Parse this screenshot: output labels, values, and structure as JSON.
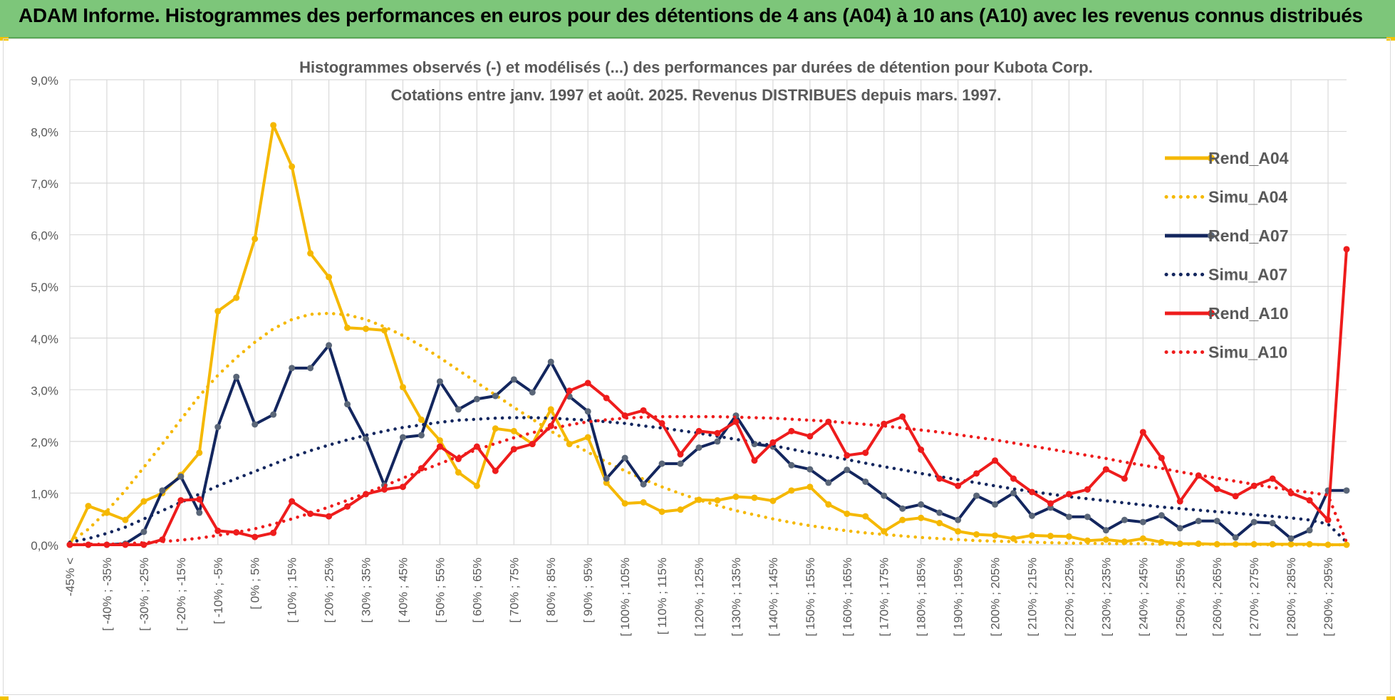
{
  "banner": {
    "title": "ADAM Informe. Histogrammes des performances en euros pour des détentions de 4 ans (A04) à 10 ans (A10) avec les revenus connus distribués"
  },
  "colors": {
    "A04": "#f5b800",
    "A07": "#13265e",
    "A10": "#ee1c1c",
    "banner": "#7dc67a",
    "grid": "#d9d9d9"
  },
  "chart_data": {
    "type": "line",
    "title": "Histogrammes observés (-) et modélisés (...) des performances par durées de détention pour Kubota Corp.",
    "subtitle": "Cotations entre janv. 1997 et août. 2025. Revenus DISTRIBUES depuis mars. 1997.",
    "xlabel": "",
    "ylabel": "",
    "ylim": [
      0,
      9
    ],
    "yticks": [
      "0,0%",
      "1,0%",
      "2,0%",
      "3,0%",
      "4,0%",
      "5,0%",
      "6,0%",
      "7,0%",
      "8,0%",
      "9,0%"
    ],
    "grid": true,
    "legend_position": "top-right",
    "x_tick_labels": [
      "-45% <",
      "[ -40% ; -35%",
      "[ -30% ; -25%",
      "[ -20% ; -15%",
      "[ -10% ; -5%",
      "[ 0% ; 5%",
      "[ 10% ; 15%",
      "[ 20% ; 25%",
      "[ 30% ; 35%",
      "[ 40% ; 45%",
      "[ 50% ; 55%",
      "[ 60% ; 65%",
      "[ 70% ; 75%",
      "[ 80% ; 85%",
      "[ 90% ; 95%",
      "[ 100% ; 105%",
      "[ 110% ; 115%",
      "[ 120% ; 125%",
      "[ 130% ; 135%",
      "[ 140% ; 145%",
      "[ 150% ; 155%",
      "[ 160% ; 165%",
      "[ 170% ; 175%",
      "[ 180% ; 185%",
      "[ 190% ; 195%",
      "[ 200% ; 205%",
      "[ 210% ; 215%",
      "[ 220% ; 225%",
      "[ 230% ; 235%",
      "[ 240% ; 245%",
      "[ 250% ; 255%",
      "[ 260% ; 265%",
      "[ 270% ; 275%",
      "[ 280% ; 285%",
      "[ 290% ; 295%"
    ],
    "n_categories": 70,
    "series": [
      {
        "name": "Rend_A04",
        "style": "solid",
        "color": "#f5b800",
        "values": [
          0.0,
          0.75,
          0.62,
          0.48,
          0.84,
          1.0,
          1.35,
          1.78,
          4.52,
          4.78,
          5.92,
          8.12,
          7.32,
          5.64,
          5.18,
          4.2,
          4.18,
          4.15,
          3.05,
          2.42,
          2.02,
          1.4,
          1.14,
          2.25,
          2.2,
          1.95,
          2.62,
          1.95,
          2.08,
          1.2,
          0.8,
          0.82,
          0.64,
          0.68,
          0.87,
          0.86,
          0.93,
          0.91,
          0.85,
          1.05,
          1.12,
          0.78,
          0.6,
          0.55,
          0.26,
          0.48,
          0.52,
          0.42,
          0.26,
          0.2,
          0.18,
          0.12,
          0.18,
          0.17,
          0.16,
          0.08,
          0.1,
          0.06,
          0.12,
          0.05,
          0.02,
          0.02,
          0.01,
          0.01,
          0.01,
          0.01,
          0.01,
          0.01,
          0.0,
          0.0
        ]
      },
      {
        "name": "Simu_A04",
        "style": "dotted",
        "color": "#f5b800",
        "values": [
          0.05,
          0.3,
          0.65,
          1.05,
          1.5,
          1.95,
          2.42,
          2.88,
          3.28,
          3.62,
          3.92,
          4.18,
          4.36,
          4.46,
          4.48,
          4.45,
          4.36,
          4.22,
          4.05,
          3.85,
          3.62,
          3.38,
          3.14,
          2.9,
          2.66,
          2.43,
          2.2,
          1.99,
          1.79,
          1.6,
          1.43,
          1.27,
          1.12,
          0.99,
          0.87,
          0.76,
          0.66,
          0.58,
          0.5,
          0.43,
          0.37,
          0.32,
          0.27,
          0.23,
          0.2,
          0.17,
          0.14,
          0.12,
          0.1,
          0.08,
          0.07,
          0.06,
          0.05,
          0.04,
          0.03,
          0.03,
          0.02,
          0.02,
          0.02,
          0.01,
          0.01,
          0.01,
          0.01,
          0.01,
          0.01,
          0.0,
          0.0,
          0.0,
          0.0,
          0.0
        ]
      },
      {
        "name": "Rend_A07",
        "style": "solid",
        "color": "#13265e",
        "values": [
          0.0,
          0.0,
          0.0,
          0.02,
          0.25,
          1.05,
          1.32,
          0.62,
          2.28,
          3.25,
          2.33,
          2.52,
          3.42,
          3.42,
          3.86,
          2.72,
          2.05,
          1.15,
          2.08,
          2.12,
          3.16,
          2.62,
          2.82,
          2.88,
          3.2,
          2.95,
          3.54,
          2.87,
          2.58,
          1.28,
          1.68,
          1.17,
          1.57,
          1.57,
          1.88,
          2.0,
          2.5,
          1.95,
          1.9,
          1.54,
          1.46,
          1.2,
          1.45,
          1.22,
          0.95,
          0.7,
          0.78,
          0.62,
          0.48,
          0.95,
          0.78,
          1.0,
          0.56,
          0.72,
          0.54,
          0.54,
          0.28,
          0.48,
          0.44,
          0.57,
          0.32,
          0.46,
          0.46,
          0.14,
          0.44,
          0.42,
          0.12,
          0.28,
          1.05,
          1.05
        ]
      },
      {
        "name": "Simu_A07",
        "style": "dotted",
        "color": "#13265e",
        "values": [
          0.05,
          0.12,
          0.22,
          0.34,
          0.5,
          0.66,
          0.82,
          0.98,
          1.14,
          1.28,
          1.42,
          1.56,
          1.7,
          1.82,
          1.93,
          2.03,
          2.12,
          2.2,
          2.27,
          2.32,
          2.37,
          2.41,
          2.43,
          2.45,
          2.46,
          2.46,
          2.45,
          2.43,
          2.41,
          2.38,
          2.35,
          2.3,
          2.26,
          2.21,
          2.16,
          2.1,
          2.04,
          1.98,
          1.92,
          1.85,
          1.78,
          1.72,
          1.65,
          1.58,
          1.51,
          1.45,
          1.38,
          1.32,
          1.26,
          1.2,
          1.14,
          1.08,
          1.03,
          0.98,
          0.93,
          0.89,
          0.85,
          0.81,
          0.77,
          0.73,
          0.7,
          0.67,
          0.64,
          0.61,
          0.58,
          0.55,
          0.52,
          0.48,
          0.4,
          0.05
        ]
      },
      {
        "name": "Rend_A10",
        "style": "solid",
        "color": "#ee1c1c",
        "values": [
          0.0,
          0.0,
          0.0,
          0.0,
          0.0,
          0.1,
          0.86,
          0.88,
          0.27,
          0.24,
          0.15,
          0.23,
          0.84,
          0.6,
          0.55,
          0.74,
          0.98,
          1.07,
          1.12,
          1.48,
          1.9,
          1.66,
          1.9,
          1.43,
          1.85,
          1.95,
          2.3,
          2.98,
          3.13,
          2.84,
          2.5,
          2.6,
          2.35,
          1.75,
          2.2,
          2.16,
          2.38,
          1.63,
          1.98,
          2.2,
          2.1,
          2.38,
          1.73,
          1.78,
          2.34,
          2.48,
          1.84,
          1.28,
          1.14,
          1.38,
          1.63,
          1.28,
          1.02,
          0.8,
          0.98,
          1.07,
          1.46,
          1.28,
          2.18,
          1.68,
          0.84,
          1.34,
          1.08,
          0.94,
          1.14,
          1.28,
          1.0,
          0.86,
          0.48,
          5.72
        ]
      },
      {
        "name": "Simu_A10",
        "style": "dotted",
        "color": "#ee1c1c",
        "values": [
          0.0,
          0.01,
          0.01,
          0.02,
          0.04,
          0.06,
          0.09,
          0.13,
          0.18,
          0.24,
          0.31,
          0.4,
          0.5,
          0.61,
          0.73,
          0.86,
          1.0,
          1.14,
          1.29,
          1.43,
          1.57,
          1.71,
          1.84,
          1.96,
          2.07,
          2.17,
          2.25,
          2.32,
          2.38,
          2.42,
          2.45,
          2.47,
          2.48,
          2.48,
          2.48,
          2.48,
          2.47,
          2.46,
          2.45,
          2.43,
          2.41,
          2.39,
          2.36,
          2.33,
          2.3,
          2.26,
          2.22,
          2.18,
          2.13,
          2.08,
          2.03,
          1.97,
          1.91,
          1.85,
          1.79,
          1.73,
          1.67,
          1.6,
          1.54,
          1.48,
          1.41,
          1.35,
          1.29,
          1.23,
          1.17,
          1.11,
          1.06,
          1.01,
          0.96,
          0.05
        ]
      }
    ]
  }
}
